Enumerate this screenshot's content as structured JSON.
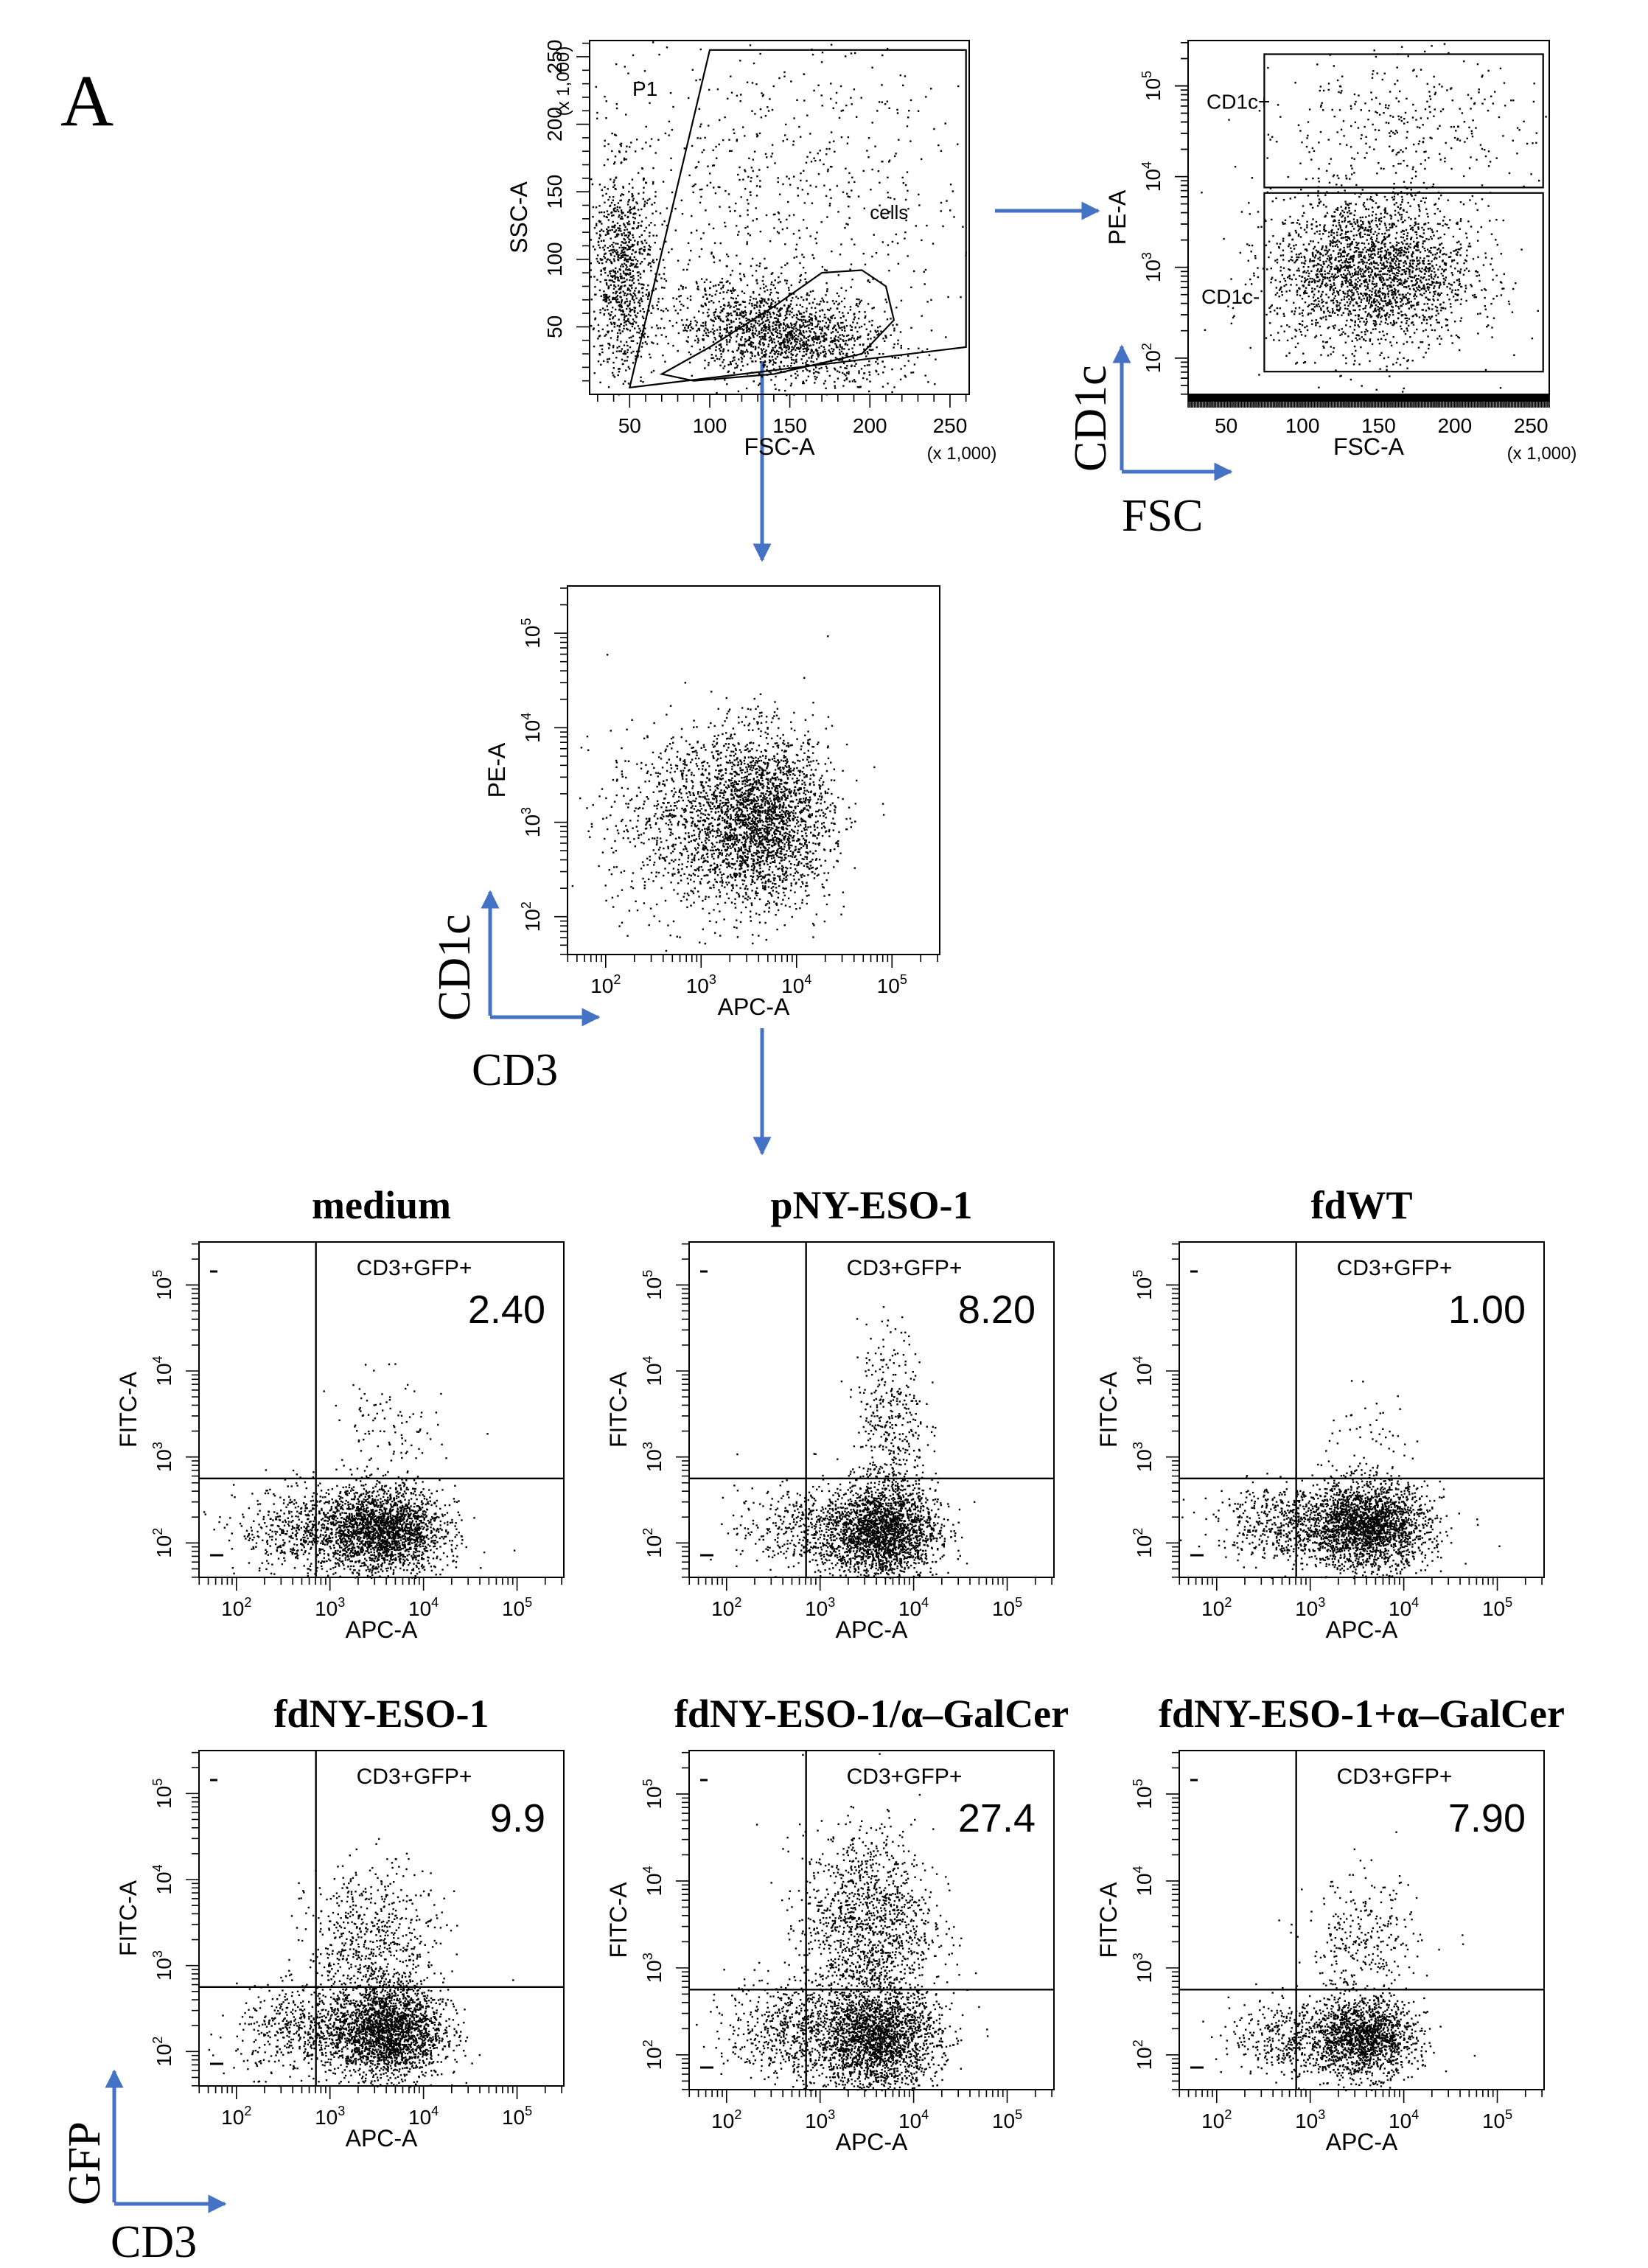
{
  "panel_label": "A",
  "colors": {
    "ink": "#000000",
    "arrow": "#4472c4",
    "paper": "#ffffff"
  },
  "chart_data": [
    {
      "id": "gate-p1",
      "type": "scatter",
      "scale": "linear",
      "xlabel": "FSC-A",
      "ylabel": "SSC-A",
      "x_unit": "(x 1,000)",
      "y_unit": "(x 1,000)",
      "xlim": [
        25,
        262
      ],
      "ylim": [
        0,
        262
      ],
      "xticks": [
        50,
        100,
        150,
        200,
        250
      ],
      "yticks": [
        50,
        100,
        150,
        200,
        250
      ],
      "xtick_labels": [
        "50",
        "100",
        "150",
        "200",
        "250"
      ],
      "ytick_labels": [
        "50",
        "100",
        "150",
        "200",
        "250"
      ],
      "gates": [
        {
          "label": "P1",
          "vertices": [
            [
              50,
              5
            ],
            [
              260,
              35
            ],
            [
              260,
              255
            ],
            [
              100,
              255
            ]
          ]
        },
        {
          "label": "cells",
          "vertices": [
            [
              70,
              15
            ],
            [
              100,
              35
            ],
            [
              140,
              65
            ],
            [
              170,
              90
            ],
            [
              195,
              92
            ],
            [
              210,
              80
            ],
            [
              215,
              55
            ],
            [
              195,
              30
            ],
            [
              140,
              15
            ],
            [
              90,
              10
            ]
          ]
        }
      ],
      "clusters": [
        {
          "cx": 145,
          "cy": 45,
          "sx": 35,
          "sy": 18,
          "n": 1600,
          "r": -0.35
        },
        {
          "cx": 45,
          "cy": 90,
          "sx": 10,
          "sy": 40,
          "n": 900,
          "r": 0
        },
        {
          "cx": 140,
          "cy": 150,
          "sx": 60,
          "sy": 60,
          "n": 700,
          "r": 0
        }
      ]
    },
    {
      "id": "gate-cd1c",
      "type": "scatter",
      "scale": "log",
      "xlabel": "FSC-A",
      "ylabel": "PE-A",
      "x_unit": "(x 1,000)",
      "xlim": [
        25,
        262
      ],
      "ylim": [
        1.6,
        5.5
      ],
      "xticks": [
        50,
        100,
        150,
        200,
        250
      ],
      "yticks": [
        2,
        3,
        4,
        5
      ],
      "xtick_labels": [
        "50",
        "100",
        "150",
        "200",
        "250"
      ],
      "ytick_labels": [
        "10",
        "10",
        "10",
        "10"
      ],
      "ytick_exponents": [
        "2",
        "3",
        "4",
        "5"
      ],
      "gates": [
        {
          "label": "CD1c+",
          "vertices": [
            [
              75,
              3.88
            ],
            [
              258,
              3.88
            ],
            [
              258,
              5.35
            ],
            [
              75,
              5.35
            ]
          ]
        },
        {
          "label": "CD1c-",
          "vertices": [
            [
              75,
              1.85
            ],
            [
              258,
              1.85
            ],
            [
              258,
              3.82
            ],
            [
              75,
              3.82
            ]
          ]
        }
      ],
      "clusters": [
        {
          "cx": 145,
          "cy": 2.95,
          "sx": 33,
          "sy": 0.42,
          "n": 2400,
          "r": 0
        },
        {
          "cx": 160,
          "cy": 4.5,
          "sx": 45,
          "sy": 0.45,
          "n": 350,
          "r": 0
        }
      ]
    },
    {
      "id": "cd3-cd1c",
      "type": "scatter",
      "scale": "log",
      "xlabel": "APC-A",
      "ylabel": "PE-A",
      "xlim": [
        1.6,
        5.5
      ],
      "ylim": [
        1.6,
        5.5
      ],
      "xticks": [
        2,
        3,
        4,
        5
      ],
      "yticks": [
        2,
        3,
        4,
        5
      ],
      "xtick_labels": [
        "10",
        "10",
        "10",
        "10"
      ],
      "xtick_exponents": [
        "2",
        "3",
        "4",
        "5"
      ],
      "ytick_labels": [
        "10",
        "10",
        "10",
        "10"
      ],
      "ytick_exponents": [
        "2",
        "3",
        "4",
        "5"
      ],
      "clusters": [
        {
          "cx": 3.65,
          "cy": 3.05,
          "sx": 0.35,
          "sy": 0.45,
          "n": 2300,
          "r": 0
        },
        {
          "cx": 2.9,
          "cy": 3.0,
          "sx": 0.45,
          "sy": 0.5,
          "n": 900,
          "r": 0
        }
      ]
    },
    {
      "id": "medium",
      "type": "scatter",
      "scale": "log",
      "title": "medium",
      "xlabel": "APC-A",
      "ylabel": "FITC-A",
      "xlim": [
        1.6,
        5.5
      ],
      "ylim": [
        1.6,
        5.5
      ],
      "xticks": [
        2,
        3,
        4,
        5
      ],
      "yticks": [
        2,
        3,
        4,
        5
      ],
      "xtick_labels": [
        "10",
        "10",
        "10",
        "10"
      ],
      "xtick_exponents": [
        "2",
        "3",
        "4",
        "5"
      ],
      "ytick_labels": [
        "10",
        "10",
        "10",
        "10"
      ],
      "ytick_exponents": [
        "2",
        "3",
        "4",
        "5"
      ],
      "quadrant": {
        "x": 2.85,
        "y": 2.75
      },
      "gate_label": "CD3+GFP+",
      "value": "2.40",
      "clusters": [
        {
          "cx": 3.55,
          "cy": 2.15,
          "sx": 0.33,
          "sy": 0.25,
          "n": 2200,
          "r": 0
        },
        {
          "cx": 2.7,
          "cy": 2.15,
          "sx": 0.35,
          "sy": 0.25,
          "n": 500,
          "r": 0
        },
        {
          "cx": 3.6,
          "cy": 3.25,
          "sx": 0.3,
          "sy": 0.35,
          "n": 110,
          "r": 0
        }
      ]
    },
    {
      "id": "pnyeso1",
      "type": "scatter",
      "scale": "log",
      "title": "pNY-ESO-1",
      "xlabel": "APC-A",
      "ylabel": "FITC-A",
      "xlim": [
        1.6,
        5.5
      ],
      "ylim": [
        1.6,
        5.5
      ],
      "xticks": [
        2,
        3,
        4,
        5
      ],
      "yticks": [
        2,
        3,
        4,
        5
      ],
      "xtick_labels": [
        "10",
        "10",
        "10",
        "10"
      ],
      "xtick_exponents": [
        "2",
        "3",
        "4",
        "5"
      ],
      "ytick_labels": [
        "10",
        "10",
        "10",
        "10"
      ],
      "ytick_exponents": [
        "2",
        "3",
        "4",
        "5"
      ],
      "quadrant": {
        "x": 2.85,
        "y": 2.75
      },
      "gate_label": "CD3+GFP+",
      "value": "8.20",
      "clusters": [
        {
          "cx": 3.65,
          "cy": 2.15,
          "sx": 0.3,
          "sy": 0.28,
          "n": 2200,
          "r": 0
        },
        {
          "cx": 2.8,
          "cy": 2.15,
          "sx": 0.35,
          "sy": 0.25,
          "n": 400,
          "r": 0
        },
        {
          "cx": 3.75,
          "cy": 3.4,
          "sx": 0.18,
          "sy": 0.55,
          "n": 380,
          "r": 0
        }
      ]
    },
    {
      "id": "fdwt",
      "type": "scatter",
      "scale": "log",
      "title": "fdWT",
      "xlabel": "APC-A",
      "ylabel": "FITC-A",
      "xlim": [
        1.6,
        5.5
      ],
      "ylim": [
        1.6,
        5.5
      ],
      "xticks": [
        2,
        3,
        4,
        5
      ],
      "yticks": [
        2,
        3,
        4,
        5
      ],
      "xtick_labels": [
        "10",
        "10",
        "10",
        "10"
      ],
      "xtick_exponents": [
        "2",
        "3",
        "4",
        "5"
      ],
      "ytick_labels": [
        "10",
        "10",
        "10",
        "10"
      ],
      "ytick_exponents": [
        "2",
        "3",
        "4",
        "5"
      ],
      "quadrant": {
        "x": 2.85,
        "y": 2.75
      },
      "gate_label": "CD3+GFP+",
      "value": "1.00",
      "clusters": [
        {
          "cx": 3.6,
          "cy": 2.2,
          "sx": 0.33,
          "sy": 0.25,
          "n": 2300,
          "r": 0
        },
        {
          "cx": 2.7,
          "cy": 2.25,
          "sx": 0.35,
          "sy": 0.22,
          "n": 500,
          "r": 0
        },
        {
          "cx": 3.6,
          "cy": 3.1,
          "sx": 0.25,
          "sy": 0.35,
          "n": 60,
          "r": 0
        }
      ]
    },
    {
      "id": "fdnyeso1",
      "type": "scatter",
      "scale": "log",
      "title": "fdNY-ESO-1",
      "xlabel": "APC-A",
      "ylabel": "FITC-A",
      "xlim": [
        1.6,
        5.5
      ],
      "ylim": [
        1.6,
        5.5
      ],
      "xticks": [
        2,
        3,
        4,
        5
      ],
      "yticks": [
        2,
        3,
        4,
        5
      ],
      "xtick_labels": [
        "10",
        "10",
        "10",
        "10"
      ],
      "xtick_exponents": [
        "2",
        "3",
        "4",
        "5"
      ],
      "ytick_labels": [
        "10",
        "10",
        "10",
        "10"
      ],
      "ytick_exponents": [
        "2",
        "3",
        "4",
        "5"
      ],
      "quadrant": {
        "x": 2.85,
        "y": 2.75
      },
      "gate_label": "CD3+GFP+",
      "value": "9.9",
      "clusters": [
        {
          "cx": 3.6,
          "cy": 2.25,
          "sx": 0.3,
          "sy": 0.28,
          "n": 2300,
          "r": 0
        },
        {
          "cx": 2.7,
          "cy": 2.25,
          "sx": 0.35,
          "sy": 0.25,
          "n": 500,
          "r": 0
        },
        {
          "cx": 3.45,
          "cy": 3.25,
          "sx": 0.35,
          "sy": 0.45,
          "n": 650,
          "r": 0
        }
      ]
    },
    {
      "id": "fdnyeso1-agalcer-fusion",
      "type": "scatter",
      "scale": "log",
      "title": "fdNY-ESO-1/α–GalCer",
      "xlabel": "APC-A",
      "ylabel": "FITC-A",
      "xlim": [
        1.6,
        5.5
      ],
      "ylim": [
        1.6,
        5.5
      ],
      "xticks": [
        2,
        3,
        4,
        5
      ],
      "yticks": [
        2,
        3,
        4,
        5
      ],
      "xtick_labels": [
        "10",
        "10",
        "10",
        "10"
      ],
      "xtick_exponents": [
        "2",
        "3",
        "4",
        "5"
      ],
      "ytick_labels": [
        "10",
        "10",
        "10",
        "10"
      ],
      "ytick_exponents": [
        "2",
        "3",
        "4",
        "5"
      ],
      "quadrant": {
        "x": 2.85,
        "y": 2.75
      },
      "gate_label": "CD3+GFP+",
      "value": "27.4",
      "clusters": [
        {
          "cx": 3.6,
          "cy": 2.2,
          "sx": 0.33,
          "sy": 0.3,
          "n": 2200,
          "r": 0
        },
        {
          "cx": 2.7,
          "cy": 2.3,
          "sx": 0.35,
          "sy": 0.3,
          "n": 600,
          "r": 0
        },
        {
          "cx": 3.5,
          "cy": 3.5,
          "sx": 0.35,
          "sy": 0.55,
          "n": 1300,
          "r": 0
        }
      ]
    },
    {
      "id": "fdnyeso1-plus-agalcer",
      "type": "scatter",
      "scale": "log",
      "title": "fdNY-ESO-1+α–GalCer",
      "xlabel": "APC-A",
      "ylabel": "FITC-A",
      "xlim": [
        1.6,
        5.5
      ],
      "ylim": [
        1.6,
        5.5
      ],
      "xticks": [
        2,
        3,
        4,
        5
      ],
      "yticks": [
        2,
        3,
        4,
        5
      ],
      "xtick_labels": [
        "10",
        "10",
        "10",
        "10"
      ],
      "xtick_exponents": [
        "2",
        "3",
        "4",
        "5"
      ],
      "ytick_labels": [
        "10",
        "10",
        "10",
        "10"
      ],
      "ytick_exponents": [
        "2",
        "3",
        "4",
        "5"
      ],
      "quadrant": {
        "x": 2.85,
        "y": 2.75
      },
      "gate_label": "CD3+GFP+",
      "value": "7.90",
      "clusters": [
        {
          "cx": 3.55,
          "cy": 2.2,
          "sx": 0.28,
          "sy": 0.22,
          "n": 1600,
          "r": 0
        },
        {
          "cx": 2.75,
          "cy": 2.2,
          "sx": 0.3,
          "sy": 0.22,
          "n": 350,
          "r": 0
        },
        {
          "cx": 3.55,
          "cy": 3.25,
          "sx": 0.3,
          "sy": 0.4,
          "n": 300,
          "r": 0
        }
      ]
    }
  ],
  "axis_keys": [
    {
      "id": "cd1c-fsc",
      "y_label": "CD1c",
      "x_label": "FSC"
    },
    {
      "id": "cd1c-cd3",
      "y_label": "CD1c",
      "x_label": "CD3"
    },
    {
      "id": "gfp-cd3",
      "y_label": "GFP",
      "x_label": "CD3"
    }
  ]
}
